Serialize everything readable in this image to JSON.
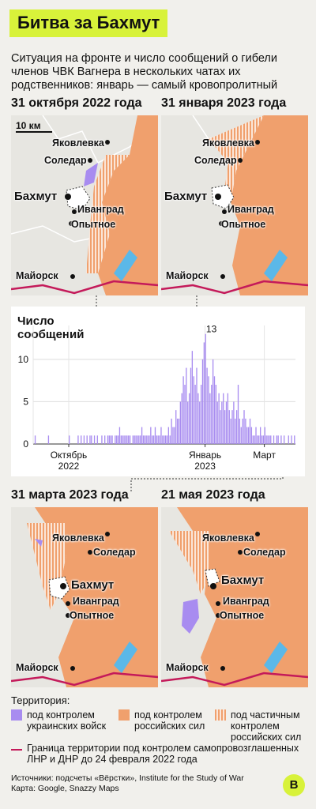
{
  "title": "Битва за Бахмут",
  "subtitle": "Ситуация на фронте и число сообщений о гибели членов ЧВК Вагнера в нескольких чатах их родственников: январь — самый кровопролитный",
  "colors": {
    "accent": "#d8f23a",
    "ukrainian": "#a88cf0",
    "russian": "#f0a06d",
    "partial": "#f0a06d",
    "border": "#c41a5a",
    "water": "#5bb8e8"
  },
  "maps": [
    {
      "date": "31 октября 2022 года",
      "scale": "10 км",
      "labels": {
        "yakovlevka": "Яковлевка",
        "soledar": "Соледар",
        "bakhmut": "Бахмут",
        "ivangrad": "Иванград",
        "opytnoe": "Опытное",
        "mayorsk": "Майорск"
      }
    },
    {
      "date": "31 января 2023 года",
      "labels": {
        "yakovlevka": "Яковлевка",
        "soledar": "Соледар",
        "bakhmut": "Бахмут",
        "ivangrad": "Иванград",
        "opytnoe": "Опытное",
        "mayorsk": "Майорск"
      }
    },
    {
      "date": "31 марта 2023 года",
      "labels": {
        "yakovlevka": "Яковлевка",
        "soledar": "Соледар",
        "bakhmut": "Бахмут",
        "ivangrad": "Иванград",
        "opytnoe": "Опытное",
        "mayorsk": "Майорск"
      }
    },
    {
      "date": "21 мая 2023 года",
      "labels": {
        "yakovlevka": "Яковлевка",
        "soledar": "Соледар",
        "bakhmut": "Бахмут",
        "ivangrad": "Иванград",
        "opytnoe": "Опытное",
        "mayorsk": "Майорск"
      }
    }
  ],
  "chart_data": {
    "type": "bar",
    "title": "Число сообщений",
    "yticks": [
      0,
      5,
      10
    ],
    "ylim": [
      0,
      14
    ],
    "xtick_labels": [
      {
        "line1": "Октябрь",
        "line2": "2022"
      },
      {
        "line1": "Январь",
        "line2": "2023"
      },
      {
        "line1": "Март",
        "line2": ""
      }
    ],
    "peak_label": "13",
    "values": [
      0,
      1,
      0,
      0,
      0,
      0,
      0,
      0,
      0,
      0,
      1,
      0,
      0,
      0,
      0,
      0,
      0,
      0,
      0,
      0,
      0,
      0,
      0,
      0,
      1,
      0,
      0,
      0,
      0,
      0,
      1,
      0,
      1,
      0,
      1,
      0,
      1,
      0,
      1,
      1,
      0,
      1,
      0,
      1,
      0,
      0,
      1,
      0,
      1,
      0,
      1,
      1,
      1,
      1,
      0,
      1,
      1,
      1,
      2,
      1,
      1,
      1,
      1,
      1,
      1,
      1,
      0,
      1,
      1,
      1,
      1,
      1,
      1,
      2,
      1,
      1,
      1,
      1,
      1,
      2,
      1,
      1,
      2,
      1,
      1,
      1,
      2,
      1,
      1,
      1,
      1,
      2,
      1,
      3,
      2,
      2,
      4,
      3,
      3,
      5,
      6,
      8,
      7,
      9,
      5,
      6,
      9,
      11,
      8,
      7,
      9,
      6,
      5,
      7,
      10,
      12,
      13,
      9,
      8,
      6,
      7,
      10,
      8,
      7,
      5,
      6,
      4,
      5,
      6,
      4,
      5,
      6,
      4,
      3,
      4,
      5,
      3,
      4,
      7,
      3,
      2,
      3,
      4,
      3,
      2,
      2,
      3,
      2,
      1,
      1,
      2,
      1,
      1,
      2,
      1,
      1,
      2,
      1,
      1,
      1,
      1,
      0,
      1,
      0,
      1,
      1,
      0,
      1,
      0,
      1,
      0,
      0,
      1,
      0,
      1,
      0,
      1
    ]
  },
  "legend": {
    "heading": "Территория:",
    "ukrainian": "под контролем украинских войск",
    "russian": "под контролем российских сил",
    "partial": "под частичным контролем российских сил",
    "border": "Граница территории под контролем самопровозглашенных ЛНР и ДНР до 24 февраля 2022 года"
  },
  "sources": "Источники: подсчеты «Вёрстки», Institute for the Study of War",
  "map_credit": "Карта: Google, Snazzy Maps",
  "logo": "В"
}
